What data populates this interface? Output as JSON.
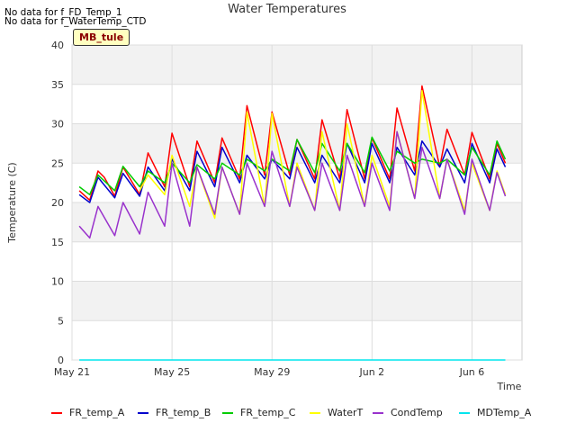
{
  "annotations": {
    "nodata1": "No data for f_FD_Temp_1",
    "nodata2": "No data for f_WaterTemp_CTD",
    "site_tag": "MB_tule"
  },
  "chart_data": {
    "type": "line",
    "title": "Water Temperatures",
    "xlabel": "Time",
    "ylabel": "Temperature (C)",
    "xlim": [
      "2024-05-21",
      "2024-06-08"
    ],
    "ylim": [
      0,
      40
    ],
    "x_ticks": [
      {
        "date": "2024-05-21",
        "label": "May 21"
      },
      {
        "date": "2024-05-25",
        "label": "May 25"
      },
      {
        "date": "2024-05-29",
        "label": "May 29"
      },
      {
        "date": "2024-06-02",
        "label": "Jun 2"
      },
      {
        "date": "2024-06-06",
        "label": "Jun 6"
      }
    ],
    "y_ticks": [
      0,
      5,
      10,
      15,
      20,
      25,
      30,
      35,
      40
    ],
    "grid": true,
    "legend": "bottom",
    "series": [
      {
        "name": "FR_temp_A",
        "color": "#ff0000",
        "values": [
          [
            "2024-05-21 07:00",
            21.5
          ],
          [
            "2024-05-21 17:00",
            20.3
          ],
          [
            "2024-05-22 01:00",
            24.0
          ],
          [
            "2024-05-22 07:00",
            23.2
          ],
          [
            "2024-05-22 17:00",
            20.8
          ],
          [
            "2024-05-23 01:00",
            24.5
          ],
          [
            "2024-05-23 17:00",
            21.0
          ],
          [
            "2024-05-24 01:00",
            26.3
          ],
          [
            "2024-05-24 17:00",
            22.0
          ],
          [
            "2024-05-25 00:00",
            28.8
          ],
          [
            "2024-05-25 17:00",
            22.0
          ],
          [
            "2024-05-26 00:00",
            27.8
          ],
          [
            "2024-05-26 17:00",
            22.5
          ],
          [
            "2024-05-27 00:00",
            28.2
          ],
          [
            "2024-05-27 17:00",
            23.0
          ],
          [
            "2024-05-28 00:00",
            32.3
          ],
          [
            "2024-05-28 17:00",
            23.5
          ],
          [
            "2024-05-29 00:00",
            31.5
          ],
          [
            "2024-05-29 17:00",
            23.5
          ],
          [
            "2024-05-30 00:00",
            28.0
          ],
          [
            "2024-05-30 17:00",
            23.0
          ],
          [
            "2024-05-31 00:00",
            30.5
          ],
          [
            "2024-05-31 17:00",
            23.0
          ],
          [
            "2024-06-01 00:00",
            31.8
          ],
          [
            "2024-06-01 17:00",
            23.0
          ],
          [
            "2024-06-02 00:00",
            28.2
          ],
          [
            "2024-06-02 17:00",
            23.0
          ],
          [
            "2024-06-03 00:00",
            32.0
          ],
          [
            "2024-06-03 17:00",
            24.0
          ],
          [
            "2024-06-04 00:00",
            34.8
          ],
          [
            "2024-06-04 17:00",
            24.5
          ],
          [
            "2024-06-05 00:00",
            29.3
          ],
          [
            "2024-06-05 17:00",
            23.5
          ],
          [
            "2024-06-06 00:00",
            28.9
          ],
          [
            "2024-06-06 17:00",
            23.0
          ],
          [
            "2024-06-07 00:00",
            27.5
          ],
          [
            "2024-06-07 08:00",
            25.0
          ]
        ]
      },
      {
        "name": "FR_temp_B",
        "color": "#0000cc",
        "values": [
          [
            "2024-05-21 07:00",
            21.0
          ],
          [
            "2024-05-21 17:00",
            20.0
          ],
          [
            "2024-05-22 01:00",
            23.2
          ],
          [
            "2024-05-22 17:00",
            20.6
          ],
          [
            "2024-05-23 01:00",
            23.7
          ],
          [
            "2024-05-23 17:00",
            20.8
          ],
          [
            "2024-05-24 01:00",
            24.5
          ],
          [
            "2024-05-24 17:00",
            21.5
          ],
          [
            "2024-05-25 00:00",
            25.5
          ],
          [
            "2024-05-25 17:00",
            21.5
          ],
          [
            "2024-05-26 00:00",
            26.5
          ],
          [
            "2024-05-26 17:00",
            22.0
          ],
          [
            "2024-05-27 00:00",
            27.0
          ],
          [
            "2024-05-27 17:00",
            22.5
          ],
          [
            "2024-05-28 00:00",
            26.0
          ],
          [
            "2024-05-28 17:00",
            23.0
          ],
          [
            "2024-05-29 00:00",
            25.5
          ],
          [
            "2024-05-29 17:00",
            23.0
          ],
          [
            "2024-05-30 00:00",
            27.0
          ],
          [
            "2024-05-30 17:00",
            22.5
          ],
          [
            "2024-05-31 00:00",
            26.0
          ],
          [
            "2024-05-31 17:00",
            22.5
          ],
          [
            "2024-06-01 00:00",
            27.5
          ],
          [
            "2024-06-01 17:00",
            22.5
          ],
          [
            "2024-06-02 00:00",
            27.5
          ],
          [
            "2024-06-02 17:00",
            22.5
          ],
          [
            "2024-06-03 00:00",
            27.0
          ],
          [
            "2024-06-03 17:00",
            23.5
          ],
          [
            "2024-06-04 00:00",
            27.8
          ],
          [
            "2024-06-04 17:00",
            24.5
          ],
          [
            "2024-06-05 00:00",
            26.8
          ],
          [
            "2024-06-05 17:00",
            22.5
          ],
          [
            "2024-06-06 00:00",
            27.5
          ],
          [
            "2024-06-06 17:00",
            22.5
          ],
          [
            "2024-06-07 00:00",
            26.8
          ],
          [
            "2024-06-07 08:00",
            24.5
          ]
        ]
      },
      {
        "name": "FR_temp_C",
        "color": "#00cc00",
        "values": [
          [
            "2024-05-21 07:00",
            22.0
          ],
          [
            "2024-05-21 17:00",
            21.0
          ],
          [
            "2024-05-22 01:00",
            23.5
          ],
          [
            "2024-05-22 17:00",
            21.5
          ],
          [
            "2024-05-23 01:00",
            24.6
          ],
          [
            "2024-05-23 17:00",
            22.0
          ],
          [
            "2024-05-24 01:00",
            24.0
          ],
          [
            "2024-05-24 17:00",
            22.5
          ],
          [
            "2024-05-25 00:00",
            25.0
          ],
          [
            "2024-05-25 17:00",
            22.5
          ],
          [
            "2024-05-26 00:00",
            24.8
          ],
          [
            "2024-05-26 17:00",
            23.0
          ],
          [
            "2024-05-27 00:00",
            25.0
          ],
          [
            "2024-05-27 17:00",
            23.5
          ],
          [
            "2024-05-28 00:00",
            25.5
          ],
          [
            "2024-05-28 17:00",
            24.0
          ],
          [
            "2024-05-29 00:00",
            25.5
          ],
          [
            "2024-05-29 17:00",
            24.0
          ],
          [
            "2024-05-30 00:00",
            28.0
          ],
          [
            "2024-05-30 17:00",
            23.8
          ],
          [
            "2024-05-31 00:00",
            27.5
          ],
          [
            "2024-05-31 17:00",
            24.0
          ],
          [
            "2024-06-01 00:00",
            27.5
          ],
          [
            "2024-06-01 17:00",
            23.8
          ],
          [
            "2024-06-02 00:00",
            28.3
          ],
          [
            "2024-06-02 17:00",
            24.0
          ],
          [
            "2024-06-03 00:00",
            26.5
          ],
          [
            "2024-06-03 17:00",
            25.0
          ],
          [
            "2024-06-04 00:00",
            25.5
          ],
          [
            "2024-06-04 17:00",
            25.0
          ],
          [
            "2024-06-05 00:00",
            25.5
          ],
          [
            "2024-06-05 17:00",
            23.5
          ],
          [
            "2024-06-06 00:00",
            27.0
          ],
          [
            "2024-06-06 17:00",
            23.5
          ],
          [
            "2024-06-07 00:00",
            27.8
          ],
          [
            "2024-06-07 08:00",
            25.5
          ]
        ]
      },
      {
        "name": "WaterT",
        "color": "#ffff00",
        "values": [
          [
            "2024-05-23 17:00",
            21.5
          ],
          [
            "2024-05-24 01:00",
            23.5
          ],
          [
            "2024-05-24 17:00",
            21.0
          ],
          [
            "2024-05-25 00:00",
            26.0
          ],
          [
            "2024-05-25 17:00",
            19.5
          ],
          [
            "2024-05-26 00:00",
            24.5
          ],
          [
            "2024-05-26 17:00",
            18.0
          ],
          [
            "2024-05-27 00:00",
            24.5
          ],
          [
            "2024-05-27 17:00",
            18.5
          ],
          [
            "2024-05-28 00:00",
            31.5
          ],
          [
            "2024-05-28 17:00",
            19.5
          ],
          [
            "2024-05-29 00:00",
            31.3
          ],
          [
            "2024-05-29 17:00",
            19.5
          ],
          [
            "2024-05-30 00:00",
            25.0
          ],
          [
            "2024-05-30 17:00",
            19.0
          ],
          [
            "2024-05-31 00:00",
            29.0
          ],
          [
            "2024-05-31 17:00",
            19.0
          ],
          [
            "2024-06-01 00:00",
            30.0
          ],
          [
            "2024-06-01 17:00",
            19.5
          ],
          [
            "2024-06-02 00:00",
            26.0
          ],
          [
            "2024-06-02 17:00",
            19.5
          ],
          [
            "2024-06-03 00:00",
            29.0
          ],
          [
            "2024-06-03 17:00",
            20.5
          ],
          [
            "2024-06-04 00:00",
            34.2
          ],
          [
            "2024-06-04 17:00",
            20.5
          ],
          [
            "2024-06-05 00:00",
            25.5
          ],
          [
            "2024-06-05 17:00",
            19.0
          ],
          [
            "2024-06-06 00:00",
            25.0
          ],
          [
            "2024-06-06 17:00",
            19.0
          ],
          [
            "2024-06-07 00:00",
            24.0
          ],
          [
            "2024-06-07 08:00",
            21.0
          ]
        ]
      },
      {
        "name": "CondTemp",
        "color": "#9932cc",
        "values": [
          [
            "2024-05-21 07:00",
            17.0
          ],
          [
            "2024-05-21 17:00",
            15.5
          ],
          [
            "2024-05-22 01:00",
            19.5
          ],
          [
            "2024-05-22 17:00",
            15.8
          ],
          [
            "2024-05-23 01:00",
            20.0
          ],
          [
            "2024-05-23 17:00",
            16.0
          ],
          [
            "2024-05-24 01:00",
            21.3
          ],
          [
            "2024-05-24 17:00",
            17.0
          ],
          [
            "2024-05-25 00:00",
            25.0
          ],
          [
            "2024-05-25 17:00",
            17.0
          ],
          [
            "2024-05-26 00:00",
            24.5
          ],
          [
            "2024-05-26 17:00",
            18.5
          ],
          [
            "2024-05-27 00:00",
            24.5
          ],
          [
            "2024-05-27 17:00",
            18.5
          ],
          [
            "2024-05-28 00:00",
            25.0
          ],
          [
            "2024-05-28 17:00",
            19.5
          ],
          [
            "2024-05-29 00:00",
            26.5
          ],
          [
            "2024-05-29 17:00",
            19.5
          ],
          [
            "2024-05-30 00:00",
            24.5
          ],
          [
            "2024-05-30 17:00",
            19.0
          ],
          [
            "2024-05-31 00:00",
            25.0
          ],
          [
            "2024-05-31 17:00",
            19.0
          ],
          [
            "2024-06-01 00:00",
            26.0
          ],
          [
            "2024-06-01 17:00",
            19.5
          ],
          [
            "2024-06-02 00:00",
            25.0
          ],
          [
            "2024-06-02 17:00",
            19.0
          ],
          [
            "2024-06-03 00:00",
            29.0
          ],
          [
            "2024-06-03 17:00",
            20.5
          ],
          [
            "2024-06-04 00:00",
            27.0
          ],
          [
            "2024-06-04 17:00",
            20.5
          ],
          [
            "2024-06-05 00:00",
            25.5
          ],
          [
            "2024-06-05 17:00",
            18.5
          ],
          [
            "2024-06-06 00:00",
            25.5
          ],
          [
            "2024-06-06 17:00",
            19.0
          ],
          [
            "2024-06-07 00:00",
            23.8
          ],
          [
            "2024-06-07 08:00",
            20.8
          ]
        ]
      },
      {
        "name": "MDTemp_A",
        "color": "#00e5ee",
        "values": [
          [
            "2024-05-21 07:00",
            0.0
          ],
          [
            "2024-06-07 08:00",
            0.0
          ]
        ]
      }
    ]
  }
}
